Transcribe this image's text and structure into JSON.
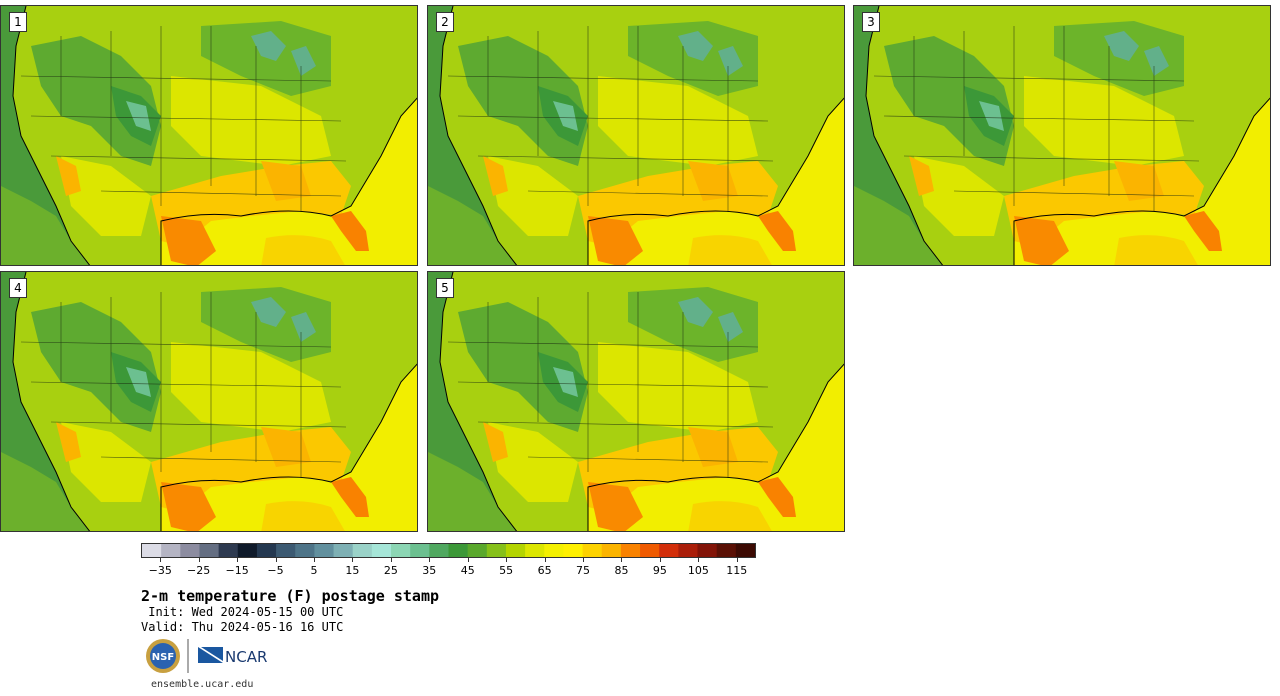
{
  "panels": [
    {
      "label": "1"
    },
    {
      "label": "2"
    },
    {
      "label": "3"
    },
    {
      "label": "4"
    },
    {
      "label": "5"
    }
  ],
  "colorbar": {
    "tick_labels": [
      "−35",
      "−25",
      "−15",
      "−5",
      "5",
      "15",
      "25",
      "35",
      "45",
      "55",
      "65",
      "75",
      "85",
      "95",
      "105",
      "115"
    ],
    "min": -40,
    "max": 120,
    "step": 5,
    "colors": [
      "#dcdce6",
      "#b4b4c3",
      "#8c8ca0",
      "#646e82",
      "#2e3a50",
      "#0f1a2a",
      "#243850",
      "#3c5a72",
      "#4e7488",
      "#62909e",
      "#7eb0b4",
      "#9ad2c8",
      "#a6e6d8",
      "#8cd6b4",
      "#6cc090",
      "#50a860",
      "#3c9838",
      "#5aa82c",
      "#86c01a",
      "#b4d400",
      "#dce600",
      "#f4f000",
      "#fff000",
      "#fdd200",
      "#fbb400",
      "#f98200",
      "#ef5a00",
      "#d22e0a",
      "#aa1e0a",
      "#821408",
      "#5a1005",
      "#3c0a03"
    ]
  },
  "title": "2-m temperature (F) postage stamp",
  "init": " Init: Wed 2024-05-15 00 UTC",
  "valid": "Valid: Thu 2024-05-16 16 UTC",
  "logos": {
    "nsf_text": "NSF",
    "ncar_text": "NCAR"
  },
  "footer_url": "ensemble.ucar.edu"
}
